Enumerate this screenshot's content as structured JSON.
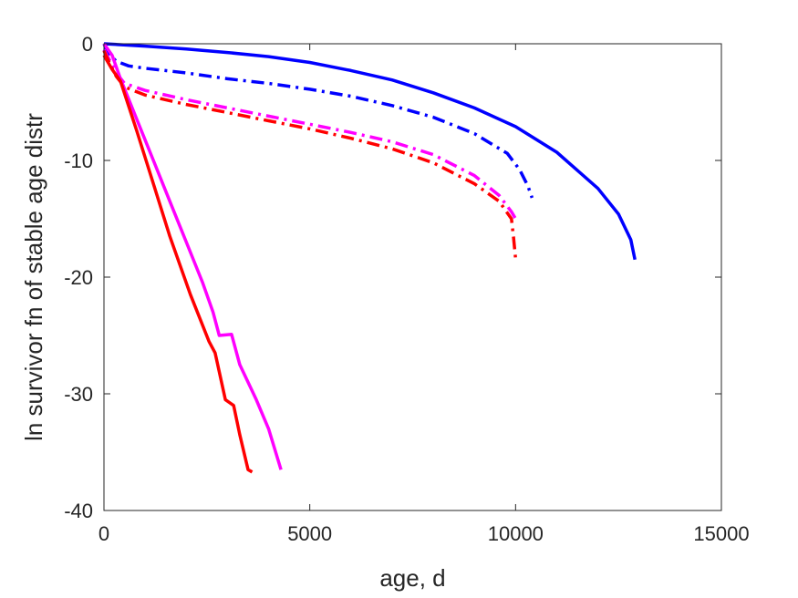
{
  "chart_data": {
    "type": "line",
    "title": "",
    "xlabel": "age, d",
    "ylabel": "ln survivor fn of stable age distr",
    "xlim": [
      0,
      15000
    ],
    "ylim": [
      -40,
      0
    ],
    "xticks": [
      0,
      5000,
      10000,
      15000
    ],
    "yticks": [
      0,
      -10,
      -20,
      -30,
      -40
    ],
    "grid": false,
    "legend": "none",
    "series": [
      {
        "color": "#0000ff",
        "style": "solid",
        "points": [
          [
            0,
            0
          ],
          [
            1000,
            -0.2
          ],
          [
            2000,
            -0.45
          ],
          [
            3000,
            -0.75
          ],
          [
            4000,
            -1.1
          ],
          [
            5000,
            -1.6
          ],
          [
            6000,
            -2.3
          ],
          [
            7000,
            -3.1
          ],
          [
            8000,
            -4.2
          ],
          [
            9000,
            -5.5
          ],
          [
            10000,
            -7.1
          ],
          [
            11000,
            -9.3
          ],
          [
            12000,
            -12.4
          ],
          [
            12500,
            -14.6
          ],
          [
            12800,
            -16.8
          ],
          [
            12900,
            -18.5
          ]
        ]
      },
      {
        "color": "#0000ff",
        "style": "dashdot",
        "points": [
          [
            0,
            0
          ],
          [
            100,
            -0.8
          ],
          [
            300,
            -1.5
          ],
          [
            600,
            -1.9
          ],
          [
            1000,
            -2.1
          ],
          [
            2000,
            -2.5
          ],
          [
            3000,
            -3.0
          ],
          [
            4000,
            -3.4
          ],
          [
            5000,
            -3.9
          ],
          [
            6000,
            -4.5
          ],
          [
            7000,
            -5.3
          ],
          [
            8000,
            -6.3
          ],
          [
            9000,
            -7.7
          ],
          [
            9800,
            -9.4
          ],
          [
            10100,
            -10.8
          ],
          [
            10300,
            -12.2
          ],
          [
            10400,
            -13.2
          ]
        ]
      },
      {
        "color": "#ff00ff",
        "style": "dashdot",
        "points": [
          [
            0,
            -0.5
          ],
          [
            150,
            -1.5
          ],
          [
            300,
            -2.5
          ],
          [
            500,
            -3.4
          ],
          [
            1000,
            -4.0
          ],
          [
            2000,
            -4.8
          ],
          [
            3000,
            -5.5
          ],
          [
            4000,
            -6.2
          ],
          [
            5000,
            -6.9
          ],
          [
            6000,
            -7.6
          ],
          [
            7000,
            -8.4
          ],
          [
            8000,
            -9.5
          ],
          [
            9000,
            -11.3
          ],
          [
            9600,
            -13.0
          ],
          [
            9900,
            -14.4
          ],
          [
            10000,
            -15.0
          ]
        ]
      },
      {
        "color": "#ff0000",
        "style": "dashdot",
        "points": [
          [
            0,
            -0.6
          ],
          [
            150,
            -1.8
          ],
          [
            300,
            -2.8
          ],
          [
            500,
            -3.7
          ],
          [
            1000,
            -4.4
          ],
          [
            2000,
            -5.2
          ],
          [
            3000,
            -5.9
          ],
          [
            4000,
            -6.6
          ],
          [
            5000,
            -7.3
          ],
          [
            6000,
            -8.1
          ],
          [
            7000,
            -9.0
          ],
          [
            8000,
            -10.2
          ],
          [
            9000,
            -12.0
          ],
          [
            9600,
            -13.5
          ],
          [
            9900,
            -15.0
          ],
          [
            9950,
            -16.6
          ],
          [
            10000,
            -18.4
          ]
        ]
      },
      {
        "color": "#ff00ff",
        "style": "solid",
        "points": [
          [
            0,
            0
          ],
          [
            200,
            -1.0
          ],
          [
            400,
            -3.0
          ],
          [
            800,
            -6.5
          ],
          [
            1200,
            -10.0
          ],
          [
            1600,
            -13.5
          ],
          [
            2000,
            -17.0
          ],
          [
            2400,
            -20.5
          ],
          [
            2650,
            -23.0
          ],
          [
            2800,
            -25.0
          ],
          [
            3100,
            -24.9
          ],
          [
            3300,
            -27.5
          ],
          [
            3700,
            -30.5
          ],
          [
            4000,
            -33.0
          ],
          [
            4300,
            -36.5
          ]
        ]
      },
      {
        "color": "#ff0000",
        "style": "solid",
        "points": [
          [
            0,
            -1.0
          ],
          [
            200,
            -2.2
          ],
          [
            400,
            -3.2
          ],
          [
            800,
            -7.5
          ],
          [
            1200,
            -12.0
          ],
          [
            1600,
            -16.5
          ],
          [
            2100,
            -21.5
          ],
          [
            2550,
            -25.5
          ],
          [
            2700,
            -26.5
          ],
          [
            2950,
            -30.5
          ],
          [
            3150,
            -31.0
          ],
          [
            3300,
            -33.5
          ],
          [
            3500,
            -36.5
          ],
          [
            3600,
            -36.7
          ]
        ]
      }
    ]
  }
}
